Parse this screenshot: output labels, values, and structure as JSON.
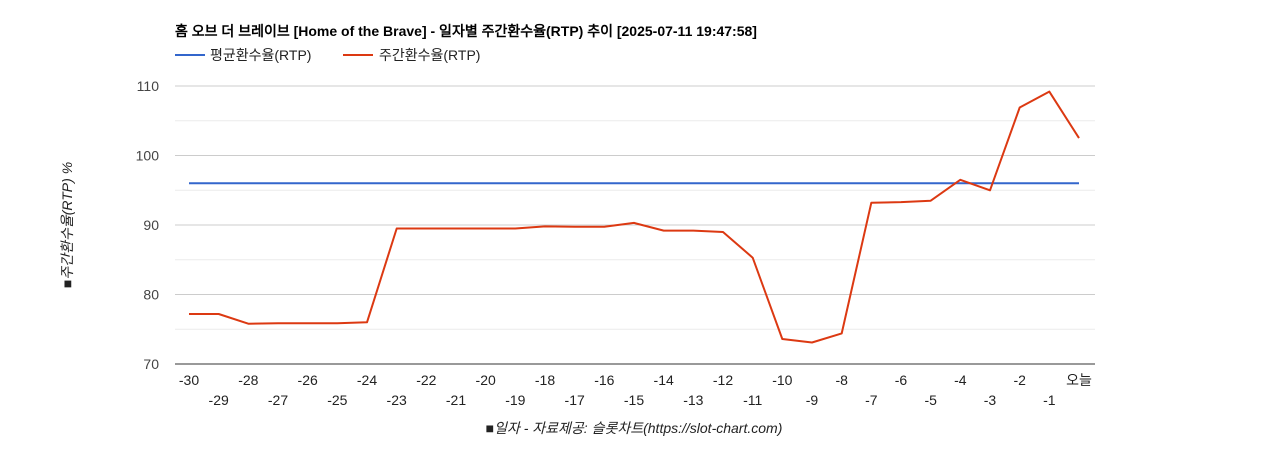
{
  "chart_data": {
    "type": "line",
    "title": "홈 오브 더 브레이브 [Home of the Brave] - 일자별 주간환수율(RTP) 추이 [2025-07-11 19:47:58]",
    "xlabel": "■일자 - 자료제공: 슬롯차트(https://slot-chart.com)",
    "ylabel": "■주간환수율(RTP) %",
    "ylim": [
      70,
      110
    ],
    "yticks": [
      "70",
      "80",
      "90",
      "100",
      "110"
    ],
    "grid": true,
    "legend_position": "top-left",
    "categories": [
      "-30",
      "-29",
      "-28",
      "-27",
      "-26",
      "-25",
      "-24",
      "-23",
      "-22",
      "-21",
      "-20",
      "-19",
      "-18",
      "-17",
      "-16",
      "-15",
      "-14",
      "-13",
      "-12",
      "-11",
      "-10",
      "-9",
      "-8",
      "-7",
      "-6",
      "-5",
      "-4",
      "-3",
      "-2",
      "-1",
      "오늘"
    ],
    "series": [
      {
        "name": "평균환수율(RTP)",
        "color": "#3366cc",
        "values": [
          96,
          96,
          96,
          96,
          96,
          96,
          96,
          96,
          96,
          96,
          96,
          96,
          96,
          96,
          96,
          96,
          96,
          96,
          96,
          96,
          96,
          96,
          96,
          96,
          96,
          96,
          96,
          96,
          96,
          96,
          96
        ]
      },
      {
        "name": "주간환수율(RTP)",
        "color": "#dc3912",
        "values": [
          77.2,
          77.2,
          75.8,
          75.85,
          75.85,
          75.85,
          76.0,
          89.5,
          89.5,
          89.5,
          89.5,
          89.5,
          89.8,
          89.75,
          89.75,
          90.3,
          89.2,
          89.2,
          89.0,
          85.3,
          73.6,
          73.1,
          74.4,
          93.2,
          93.3,
          93.5,
          96.5,
          95.0,
          106.9,
          109.2,
          102.5
        ]
      }
    ]
  }
}
